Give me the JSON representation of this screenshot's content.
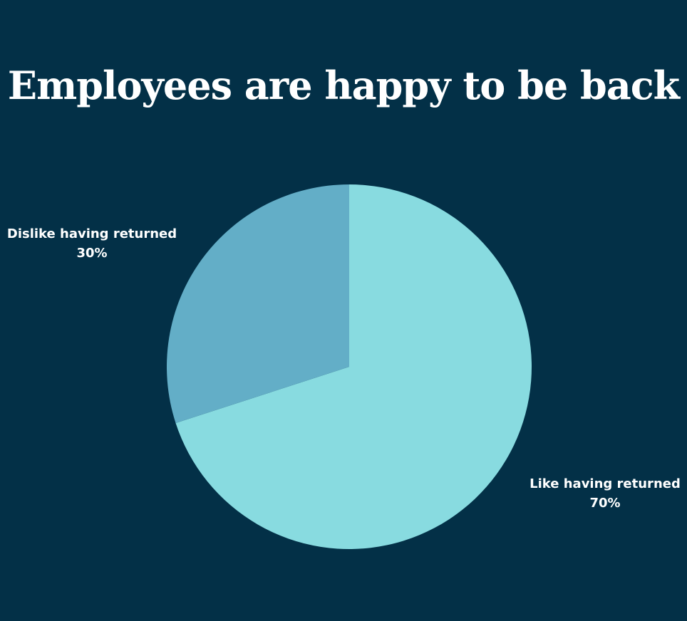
{
  "chart_data": {
    "type": "pie",
    "title": "Employees are happy to be back",
    "slices": [
      {
        "label": "Like having returned",
        "value": 70,
        "value_label": "70%",
        "color": "#88dbe0"
      },
      {
        "label": "Dislike having returned",
        "value": 30,
        "value_label": "30%",
        "color": "#63aec7"
      }
    ],
    "start_angle_deg": 0,
    "direction": "clockwise",
    "background_color": "#033047",
    "legend": "none"
  }
}
